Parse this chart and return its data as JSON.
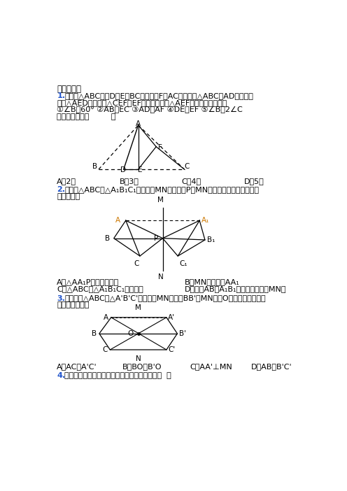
{
  "bg_color": "#ffffff",
  "text_color": "#000000",
  "blue_color": "#2255cc",
  "orange_color": "#cc7700",
  "section1": "一、选择题",
  "q1_blue": "1.",
  "q1_line1": "如图，△ABC，点D、E在BC边上，点F在AC边上，将△ABC沿AD折叠，恰",
  "q1_line2": "好与△AED重合，将△CEF沿EF折叠，恰好与△AEF重合，下列结论：",
  "q1_cond": "①∠B＝60° ②AB＝EC ③AD＝AF ④DE＝EF ⑤∠B＝2∠C",
  "q1_sub": "正确的个数有（         ）",
  "q1_opts": [
    "A．2个",
    "B．3个",
    "C．4个",
    "D．5个"
  ],
  "q2_blue": "2.",
  "q2_line1": "如图，△ABC与△A₁B₁C₁关于直线MN对称，点P为MN上任一点，下列结论中错",
  "q2_line2": "误的是（）",
  "q2_optA": "A．△AA₁P是等腰三角形",
  "q2_optB": "B．MN垂直平分AA₁",
  "q2_optC": "C．△ABC与△A₁B₁C₁面积相等",
  "q2_optD": "D．直线AB、A₁B₁的交点不一定在MN上",
  "q3_blue": "3.",
  "q3_line1": "如图，若△ABC与△A'B'C'关于直线MN对称，BB'交MN于点O，则下列说法不一",
  "q3_line2": "定正确的是（）",
  "q3_opts": [
    "A．AC＝A'C'",
    "B．BO＝B'O",
    "C．AA'⊥MN",
    "D．AB＝B'C'"
  ],
  "q4_blue": "4.",
  "q4_line1": "下列与防疫有关的图案中不是轴对称图形的有（  ）"
}
